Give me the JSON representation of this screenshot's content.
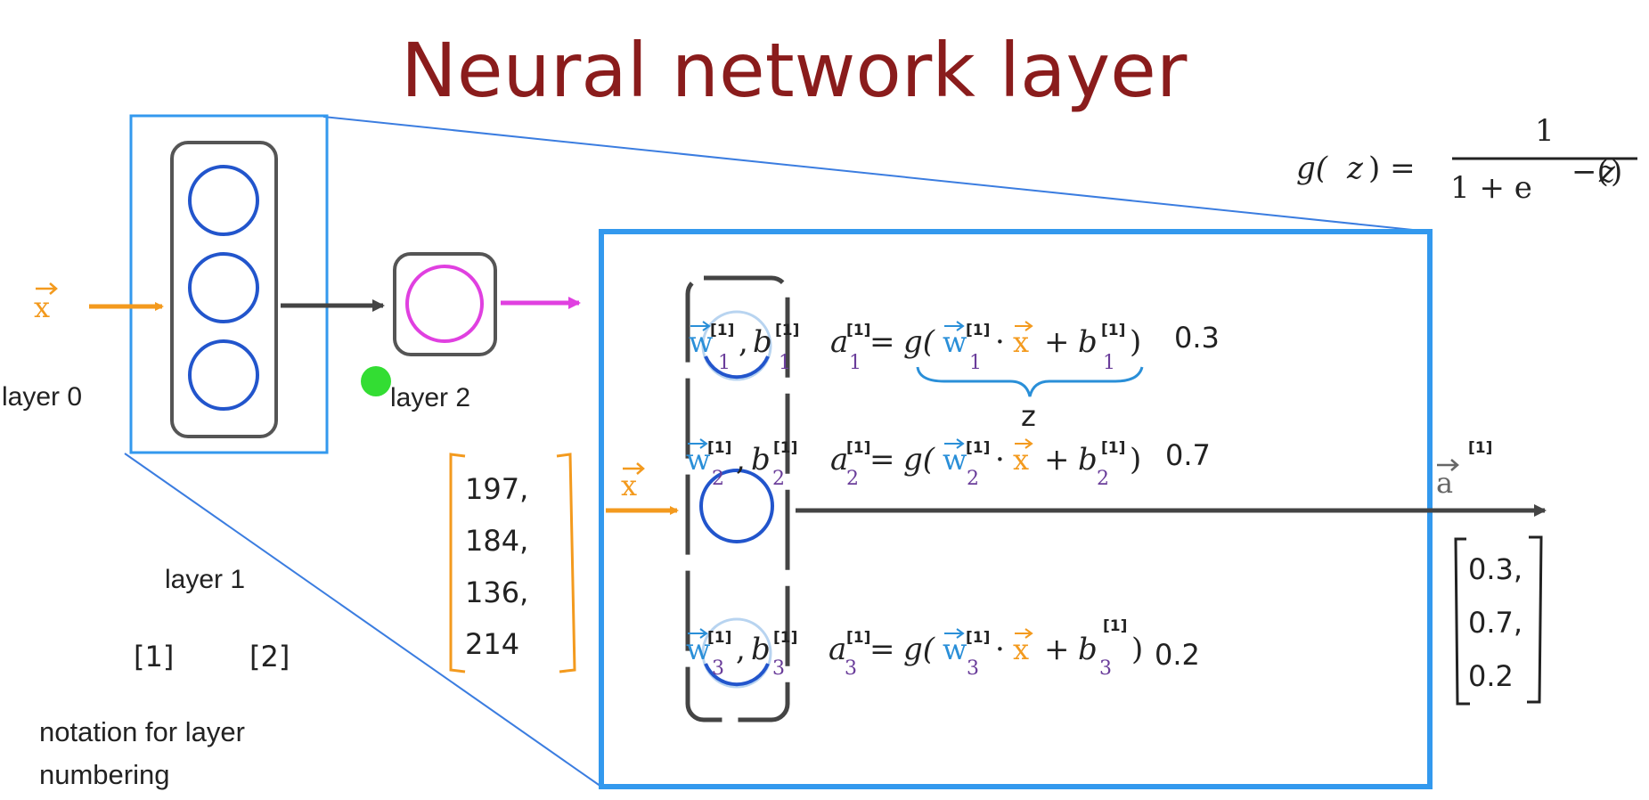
{
  "title": "Neural network layer",
  "colors": {
    "title": "#8a1c1c",
    "blue_frame": "#3399ee",
    "neuron_blue": "#2255cc",
    "magenta": "#e040e0",
    "orange": "#f39a1e",
    "purple": "#6a3d9a",
    "param_blue": "#2a8fd8",
    "green_dot": "#33dd33",
    "arrow_gray": "#444444"
  },
  "input_label": "x",
  "labels": {
    "layer0": "layer 0",
    "layer1": "layer 1",
    "layer2": "layer 2",
    "bracket1": "[1]",
    "bracket2": "[2]",
    "notation_line1": "notation for layer",
    "notation_line2": "numbering"
  },
  "sigmoid": {
    "lhs": "g(",
    "z": "z",
    "rhs": ") =",
    "numerator": "1",
    "denominator_prefix": "1 + e",
    "exponent_prefix": "−(",
    "exponent_z": "z",
    "exponent_suffix": ")"
  },
  "input_vector": [
    "197,",
    "184,",
    "136,",
    "214"
  ],
  "neurons": [
    {
      "index": "1",
      "output": "0.3"
    },
    {
      "index": "2",
      "output": "0.7"
    },
    {
      "index": "3",
      "output": "0.2"
    }
  ],
  "layer_superscript": "[1]",
  "brace_label": "z",
  "output_label": "a",
  "output_superscript": "[1]",
  "output_vector": [
    "0.3,",
    "0.7,",
    "0.2"
  ]
}
